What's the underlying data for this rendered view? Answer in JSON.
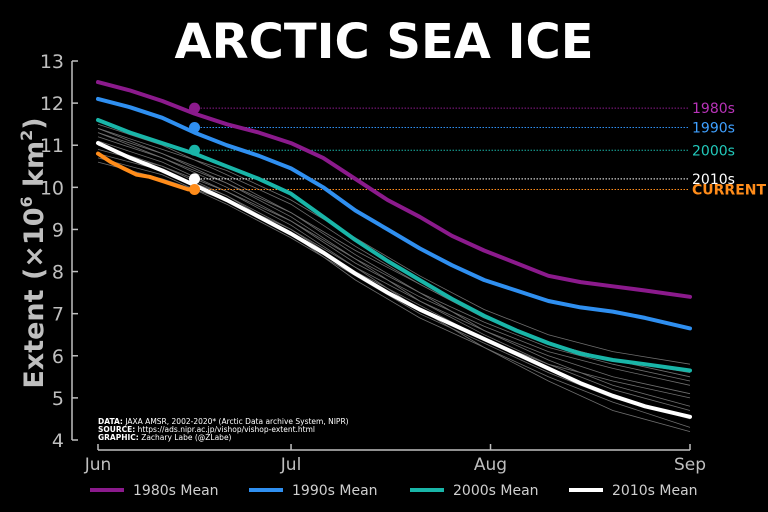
{
  "chart_data": {
    "type": "line",
    "title": "ARCTIC SEA ICE",
    "ylabel": "Extent (×10",
    "ylabel_exp": "6",
    "ylabel_unit": " km",
    "ylabel_unit_exp": "2",
    "ylabel_close": ")",
    "xticks": [
      {
        "x": 0,
        "label": "Jun"
      },
      {
        "x": 30,
        "label": "Jul"
      },
      {
        "x": 61,
        "label": "Aug"
      },
      {
        "x": 92,
        "label": "Sep"
      }
    ],
    "ylim": [
      4,
      13
    ],
    "yticks": [
      4,
      5,
      6,
      7,
      8,
      9,
      10,
      11,
      12,
      13
    ],
    "xlim": [
      0,
      92
    ],
    "grid": false,
    "legend_position": "bottom",
    "colors": {
      "background": "#000000",
      "axis": "#bfbfbf",
      "thin_years": "#6e6e6e",
      "title": "#ffffff"
    },
    "series": [
      {
        "name": "1980s Mean",
        "color": "#8b1a8c",
        "x": [
          0,
          5,
          10,
          15,
          20,
          25,
          30,
          35,
          40,
          45,
          50,
          55,
          60,
          65,
          70,
          75,
          80,
          85,
          92
        ],
        "y": [
          12.5,
          12.3,
          12.05,
          11.75,
          11.5,
          11.3,
          11.05,
          10.7,
          10.2,
          9.7,
          9.3,
          8.85,
          8.5,
          8.2,
          7.9,
          7.75,
          7.65,
          7.55,
          7.4
        ]
      },
      {
        "name": "1990s Mean",
        "color": "#2f8ff0",
        "x": [
          0,
          5,
          10,
          15,
          20,
          25,
          30,
          35,
          40,
          45,
          50,
          55,
          60,
          65,
          70,
          75,
          80,
          85,
          92
        ],
        "y": [
          12.1,
          11.9,
          11.65,
          11.3,
          11.0,
          10.75,
          10.45,
          10.0,
          9.45,
          9.0,
          8.55,
          8.15,
          7.8,
          7.55,
          7.3,
          7.15,
          7.05,
          6.9,
          6.65
        ]
      },
      {
        "name": "2000s Mean",
        "color": "#19b5a8",
        "x": [
          0,
          5,
          10,
          15,
          20,
          25,
          30,
          35,
          40,
          45,
          50,
          55,
          60,
          65,
          70,
          75,
          80,
          85,
          92
        ],
        "y": [
          11.6,
          11.3,
          11.05,
          10.8,
          10.5,
          10.2,
          9.85,
          9.3,
          8.75,
          8.25,
          7.8,
          7.35,
          6.95,
          6.6,
          6.3,
          6.05,
          5.9,
          5.8,
          5.65
        ]
      },
      {
        "name": "2010s Mean",
        "color": "#ffffff",
        "x": [
          0,
          5,
          10,
          15,
          20,
          25,
          30,
          35,
          40,
          45,
          50,
          55,
          60,
          65,
          70,
          75,
          80,
          85,
          92
        ],
        "y": [
          11.05,
          10.7,
          10.4,
          10.05,
          9.7,
          9.3,
          8.9,
          8.45,
          7.95,
          7.5,
          7.1,
          6.75,
          6.4,
          6.05,
          5.7,
          5.35,
          5.05,
          4.8,
          4.55
        ]
      },
      {
        "name": "CURRENT",
        "color": "#ff8c1a",
        "x": [
          0,
          2,
          4,
          6,
          8,
          10,
          12,
          14,
          15
        ],
        "y": [
          10.8,
          10.6,
          10.45,
          10.3,
          10.25,
          10.15,
          10.05,
          9.95,
          9.95
        ]
      }
    ],
    "thin_years": [
      {
        "x": [
          0,
          10,
          20,
          30,
          40,
          50,
          60,
          70,
          80,
          92
        ],
        "y": [
          11.5,
          11.0,
          10.3,
          9.6,
          8.6,
          7.7,
          6.9,
          6.3,
          5.9,
          5.5
        ]
      },
      {
        "x": [
          0,
          10,
          20,
          30,
          40,
          50,
          60,
          70,
          80,
          92
        ],
        "y": [
          11.3,
          10.8,
          10.2,
          9.4,
          8.4,
          7.5,
          6.6,
          5.9,
          5.3,
          4.8
        ]
      },
      {
        "x": [
          0,
          10,
          20,
          30,
          40,
          50,
          60,
          70,
          80,
          92
        ],
        "y": [
          11.1,
          10.6,
          9.9,
          9.2,
          8.2,
          7.4,
          6.7,
          6.1,
          5.7,
          5.3
        ]
      },
      {
        "x": [
          0,
          10,
          20,
          30,
          40,
          50,
          60,
          70,
          80,
          92
        ],
        "y": [
          10.9,
          10.5,
          9.8,
          8.9,
          7.8,
          6.9,
          6.2,
          5.5,
          4.9,
          4.3
        ]
      },
      {
        "x": [
          0,
          10,
          20,
          30,
          40,
          50,
          60,
          70,
          80,
          92
        ],
        "y": [
          11.4,
          10.9,
          10.4,
          9.7,
          8.8,
          7.9,
          7.1,
          6.5,
          6.1,
          5.8
        ]
      },
      {
        "x": [
          0,
          10,
          20,
          30,
          40,
          50,
          60,
          70,
          80,
          92
        ],
        "y": [
          10.7,
          10.3,
          9.6,
          8.8,
          7.9,
          7.0,
          6.3,
          5.6,
          5.0,
          4.5
        ]
      },
      {
        "x": [
          0,
          10,
          20,
          30,
          40,
          50,
          60,
          70,
          80,
          92
        ],
        "y": [
          11.2,
          10.7,
          10.1,
          9.3,
          8.3,
          7.3,
          6.5,
          5.8,
          5.4,
          5.0
        ]
      },
      {
        "x": [
          0,
          10,
          20,
          30,
          40,
          50,
          60,
          70,
          80,
          92
        ],
        "y": [
          10.6,
          10.2,
          9.7,
          9.0,
          8.0,
          7.2,
          6.4,
          5.8,
          5.2,
          4.7
        ]
      },
      {
        "x": [
          0,
          10,
          20,
          30,
          40,
          50,
          60,
          70,
          80,
          92
        ],
        "y": [
          11.0,
          10.5,
          9.9,
          9.1,
          8.1,
          7.1,
          6.2,
          5.4,
          4.7,
          4.2
        ]
      },
      {
        "x": [
          0,
          10,
          20,
          30,
          40,
          50,
          60,
          70,
          80,
          92
        ],
        "y": [
          11.4,
          10.8,
          10.1,
          9.4,
          8.5,
          7.7,
          6.9,
          6.3,
          5.9,
          5.6
        ]
      },
      {
        "x": [
          0,
          10,
          20,
          30,
          40,
          50,
          60,
          70,
          80,
          92
        ],
        "y": [
          10.8,
          10.4,
          9.8,
          9.0,
          8.1,
          7.3,
          6.6,
          6.0,
          5.5,
          5.1
        ]
      },
      {
        "x": [
          0,
          10,
          20,
          30,
          40,
          50,
          60,
          70,
          80,
          92
        ],
        "y": [
          11.3,
          10.7,
          10.0,
          9.2,
          8.3,
          7.5,
          6.8,
          6.2,
          5.8,
          5.4
        ]
      }
    ],
    "annotations": [
      {
        "label": "1980s",
        "x": 15,
        "y": 11.88,
        "color": "#8b1a8c",
        "label_color": "#b833b8"
      },
      {
        "label": "1990s",
        "x": 15,
        "y": 11.42,
        "color": "#2f8ff0",
        "label_color": "#3fa0ff"
      },
      {
        "label": "2000s",
        "x": 15,
        "y": 10.88,
        "color": "#19b5a8",
        "label_color": "#22c9bb"
      },
      {
        "label": "2010s",
        "x": 15,
        "y": 10.2,
        "color": "#ffffff",
        "label_color": "#ffffff"
      },
      {
        "label": "CURRENT",
        "x": 15,
        "y": 9.95,
        "color": "#ff8c1a",
        "label_color": "#ff8c1a"
      }
    ],
    "credits": [
      {
        "key": "DATA:",
        "text": " JAXA AMSR, 2002-2020* (Arctic Data archive System, NIPR)"
      },
      {
        "key": "SOURCE:",
        "text": " https://ads.nipr.ac.jp/vishop/vishop-extent.html"
      },
      {
        "key": "GRAPHIC:",
        "text": " Zachary Labe (@ZLabe)"
      }
    ]
  }
}
